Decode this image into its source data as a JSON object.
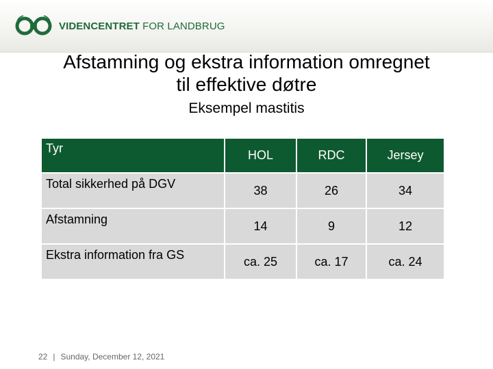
{
  "logo": {
    "text_bold": "VIDENCENTRET",
    "text_regular": " FOR LANDBRUG",
    "brand_color": "#1f6b3a",
    "icon": "logo-mark-icon"
  },
  "slide": {
    "title_line1": "Afstamning og ekstra information omregnet",
    "title_line2": "til effektive døtre",
    "subtitle": "Eksempel mastitis"
  },
  "table": {
    "header_color": "#0e5a30",
    "row_color": "#d8d9d8",
    "header": [
      "Tyr",
      "HOL",
      "RDC",
      "Jersey"
    ],
    "rows": [
      [
        "Total sikkerhed på DGV",
        "38",
        "26",
        "34"
      ],
      [
        "Afstamning",
        "14",
        "9",
        "12"
      ],
      [
        "Ekstra information fra GS",
        "ca. 25",
        "ca. 17",
        "ca. 24"
      ]
    ]
  },
  "footer": {
    "page_number": "22",
    "separator": "|",
    "date": "Sunday, December 12, 2021"
  }
}
